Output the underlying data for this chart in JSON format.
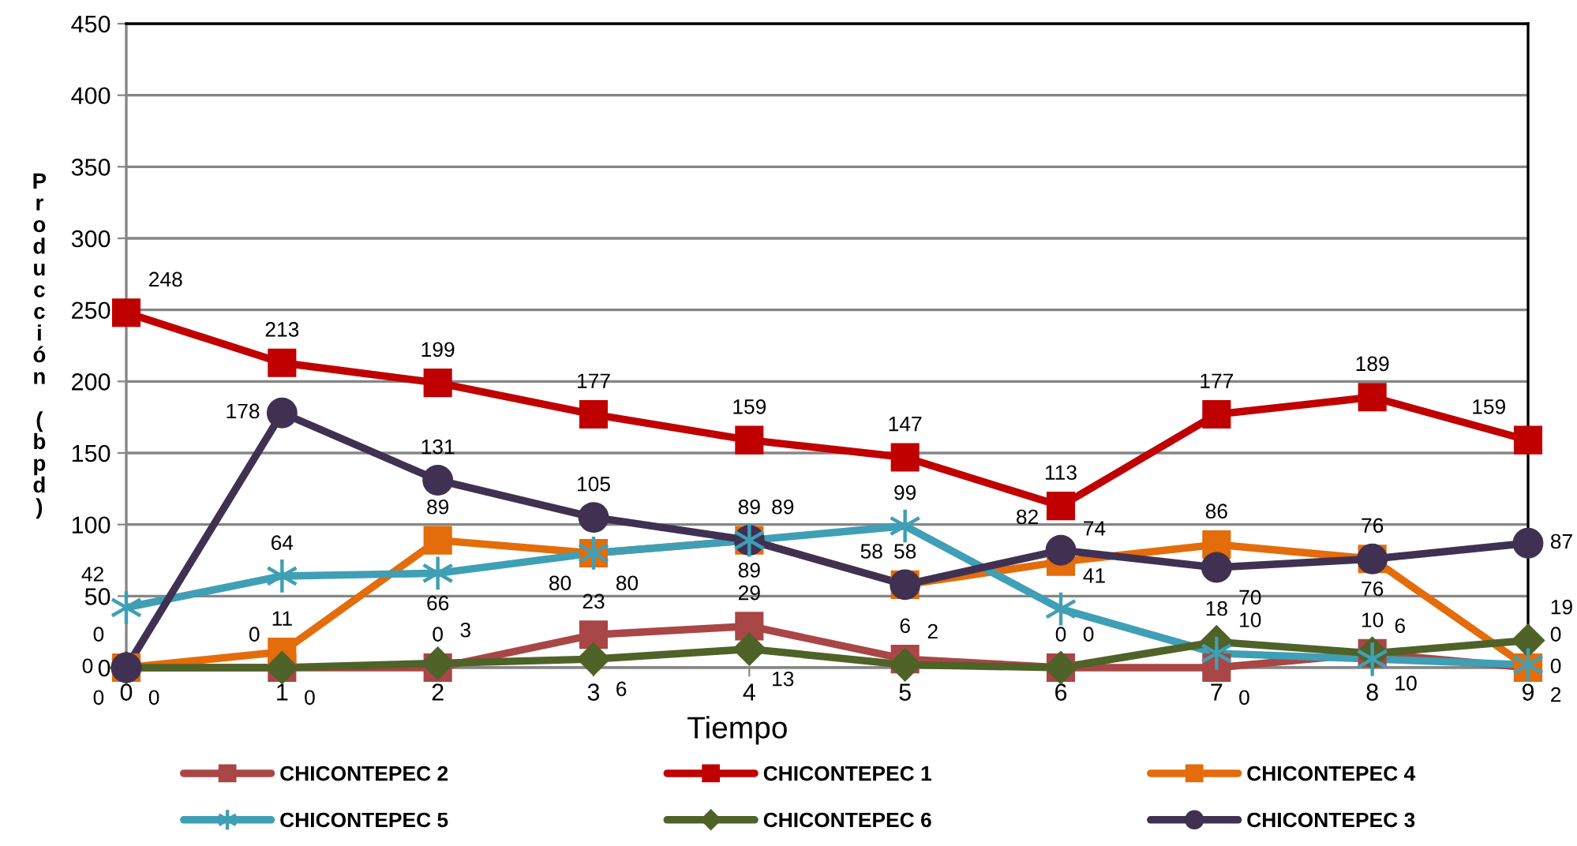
{
  "chart_data": {
    "type": "line",
    "xlabel": "Tiempo",
    "ylabel": "Producción (bpd)",
    "categories": [
      "0",
      "1",
      "2",
      "3",
      "4",
      "5",
      "6",
      "7",
      "8",
      "9"
    ],
    "ylim": [
      0,
      450
    ],
    "yticks": [
      0,
      50,
      100,
      150,
      200,
      250,
      300,
      350,
      400,
      450
    ],
    "grid": "y",
    "legend": "bottom",
    "data_labels": true,
    "line_style": "solid",
    "series": [
      {
        "name": "CHICONTEPEC 2",
        "color": "#a94646",
        "marker": "square",
        "values": [
          0,
          0,
          0,
          23,
          29,
          6,
          0,
          0,
          10,
          0
        ]
      },
      {
        "name": "CHICONTEPEC 1",
        "color": "#c00000",
        "marker": "square",
        "values": [
          248,
          213,
          199,
          177,
          159,
          147,
          113,
          177,
          189,
          159
        ]
      },
      {
        "name": "CHICONTEPEC 4",
        "color": "#e46c0a",
        "marker": "square",
        "values": [
          0,
          11,
          89,
          80,
          89,
          58,
          74,
          86,
          76,
          0
        ]
      },
      {
        "name": "CHICONTEPEC 5",
        "color": "#3f9fb5",
        "marker": "cross",
        "values": [
          42,
          64,
          66,
          80,
          89,
          99,
          41,
          10,
          6,
          2
        ]
      },
      {
        "name": "CHICONTEPEC 6",
        "color": "#4f6228",
        "marker": "diamond",
        "values": [
          0,
          0,
          3,
          6,
          13,
          2,
          0,
          18,
          10,
          19
        ]
      },
      {
        "name": "CHICONTEPEC 3",
        "color": "#403152",
        "marker": "circle",
        "values": [
          0,
          178,
          131,
          105,
          89,
          58,
          82,
          70,
          76,
          87
        ]
      }
    ]
  }
}
